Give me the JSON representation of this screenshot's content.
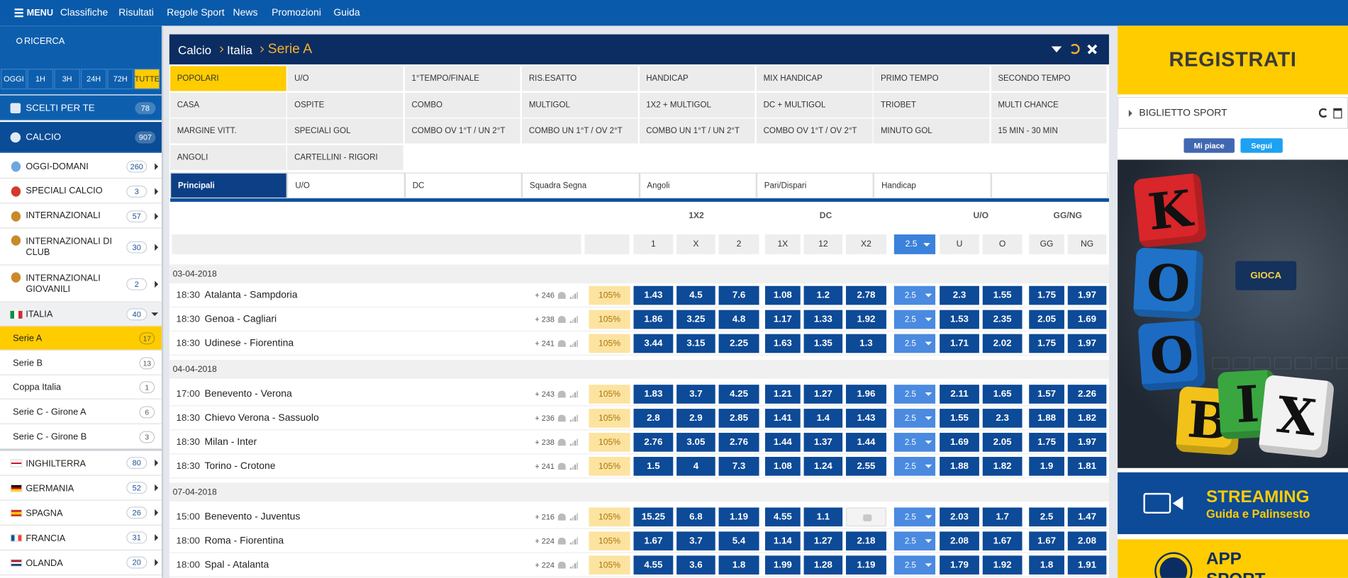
{
  "nav": {
    "menu": "MENU",
    "links": [
      "Classifiche",
      "Risultati",
      "Regole Sport",
      "News",
      "Promozioni",
      "Guida"
    ]
  },
  "sidebar": {
    "search": "RICERCA",
    "time_filters": [
      "OGGI",
      "1H",
      "3H",
      "24H",
      "72H",
      "TUTTE"
    ],
    "featured": [
      {
        "label": "SCELTI PER TE",
        "count": 78
      },
      {
        "label": "CALCIO",
        "count": 907
      }
    ],
    "groups": [
      {
        "label": "OGGI-DOMANI",
        "count": 260
      },
      {
        "label": "SPECIALI CALCIO",
        "count": 3
      },
      {
        "label": "INTERNAZIONALI",
        "count": 57
      },
      {
        "label": "INTERNAZIONALI DI CLUB",
        "count": 30
      },
      {
        "label": "INTERNAZIONALI GIOVANILI",
        "count": 2
      },
      {
        "label": "ITALIA",
        "count": 40
      }
    ],
    "italia": [
      {
        "label": "Serie A",
        "count": 17
      },
      {
        "label": "Serie B",
        "count": 13
      },
      {
        "label": "Coppa Italia",
        "count": 1
      },
      {
        "label": "Serie C - Girone A",
        "count": 6
      },
      {
        "label": "Serie C - Girone B",
        "count": 3
      }
    ],
    "countries": [
      {
        "label": "INGHILTERRA",
        "count": 80
      },
      {
        "label": "GERMANIA",
        "count": 52
      },
      {
        "label": "SPAGNA",
        "count": 26
      },
      {
        "label": "FRANCIA",
        "count": 31
      },
      {
        "label": "OLANDA",
        "count": 20
      }
    ]
  },
  "breadcrumb": [
    "Calcio",
    "Italia",
    "Serie A"
  ],
  "market_tabs": [
    [
      "POPOLARI",
      "U/O",
      "1°TEMPO/FINALE",
      "RIS.ESATTO",
      "HANDICAP",
      "MIX HANDICAP",
      "PRIMO TEMPO",
      "SECONDO TEMPO"
    ],
    [
      "CASA",
      "OSPITE",
      "COMBO",
      "MULTIGOL",
      "1X2 + MULTIGOL",
      "DC + MULTIGOL",
      "TRIOBET",
      "MULTI CHANCE"
    ],
    [
      "MARGINE VITT.",
      "SPECIALI GOL",
      "COMBO OV 1°T / UN 2°T",
      "COMBO UN 1°T / OV 2°T",
      "COMBO UN 1°T / UN 2°T",
      "COMBO OV 1°T / OV 2°T",
      "MINUTO GOL",
      "15 MIN - 30 MIN"
    ],
    [
      "ANGOLI",
      "CARTELLINI - RIGORI"
    ]
  ],
  "sub_tabs": [
    "Principali",
    "U/O",
    "DC",
    "Squadra Segna",
    "Angoli",
    "Pari/Dispari",
    "Handicap"
  ],
  "odds_table": {
    "groups": [
      "1X2",
      "DC",
      "U/O",
      "GG/NG"
    ],
    "columns": [
      "1",
      "X",
      "2",
      "1X",
      "12",
      "X2",
      "2.5",
      "U",
      "O",
      "GG",
      "NG"
    ],
    "days": [
      {
        "date": "03-04-2018",
        "matches": [
          {
            "time": "18:30",
            "teams": "Atalanta - Sampdoria",
            "more": "+ 246",
            "payout": "105%",
            "line": "2.5",
            "odds": [
              1.43,
              4.5,
              7.6,
              1.08,
              1.2,
              2.78,
              2.3,
              1.55,
              1.75,
              1.97
            ]
          },
          {
            "time": "18:30",
            "teams": "Genoa - Cagliari",
            "more": "+ 238",
            "payout": "105%",
            "line": "2.5",
            "odds": [
              1.86,
              3.25,
              4.8,
              1.17,
              1.33,
              1.92,
              1.53,
              2.35,
              2.05,
              1.69
            ]
          },
          {
            "time": "18:30",
            "teams": "Udinese - Fiorentina",
            "more": "+ 241",
            "payout": "105%",
            "line": "2.5",
            "odds": [
              3.44,
              3.15,
              2.25,
              1.63,
              1.35,
              1.3,
              1.71,
              2.02,
              1.75,
              1.97
            ]
          }
        ]
      },
      {
        "date": "04-04-2018",
        "matches": [
          {
            "time": "17:00",
            "teams": "Benevento - Verona",
            "more": "+ 243",
            "payout": "105%",
            "line": "2.5",
            "odds": [
              1.83,
              3.7,
              4.25,
              1.21,
              1.27,
              1.96,
              2.11,
              1.65,
              1.57,
              2.26
            ]
          },
          {
            "time": "18:30",
            "teams": "Chievo Verona - Sassuolo",
            "more": "+ 236",
            "payout": "105%",
            "line": "2.5",
            "odds": [
              2.8,
              2.9,
              2.85,
              1.41,
              1.4,
              1.43,
              1.55,
              2.3,
              1.88,
              1.82
            ]
          },
          {
            "time": "18:30",
            "teams": "Milan - Inter",
            "more": "+ 238",
            "payout": "105%",
            "line": "2.5",
            "odds": [
              2.76,
              3.05,
              2.76,
              1.44,
              1.37,
              1.44,
              1.69,
              2.05,
              1.75,
              1.97
            ]
          },
          {
            "time": "18:30",
            "teams": "Torino - Crotone",
            "more": "+ 241",
            "payout": "105%",
            "line": "2.5",
            "odds": [
              1.5,
              4,
              7.3,
              1.08,
              1.24,
              2.55,
              1.88,
              1.82,
              1.9,
              1.81
            ]
          }
        ]
      },
      {
        "date": "07-04-2018",
        "matches": [
          {
            "time": "15:00",
            "teams": "Benevento - Juventus",
            "more": "+ 216",
            "payout": "105%",
            "line": "2.5",
            "odds": [
              15.25,
              6.8,
              1.19,
              4.55,
              1.1,
              null,
              2.03,
              1.7,
              2.5,
              1.47
            ]
          },
          {
            "time": "18:00",
            "teams": "Roma - Fiorentina",
            "more": "+ 224",
            "payout": "105%",
            "line": "2.5",
            "odds": [
              1.67,
              3.7,
              5.4,
              1.14,
              1.27,
              2.18,
              2.08,
              1.67,
              1.67,
              2.08
            ]
          },
          {
            "time": "18:00",
            "teams": "Spal - Atalanta",
            "more": "+ 224",
            "payout": "105%",
            "line": "2.5",
            "odds": [
              4.55,
              3.6,
              1.8,
              1.99,
              1.28,
              1.19,
              1.79,
              1.92,
              1.8,
              1.91
            ]
          }
        ]
      }
    ]
  },
  "side": {
    "register": "REGISTRATI",
    "ticket": "BIGLIETTO SPORT",
    "like": "Mi piace",
    "follow": "Segui",
    "ad_letters": [
      "K",
      "O",
      "O",
      "B",
      "I",
      "X"
    ],
    "ad_button": "GIOCA",
    "streaming": "STREAMING",
    "streaming_sub": "Guida e Palinsesto",
    "app": "APP",
    "app_sub": "SPORT"
  }
}
